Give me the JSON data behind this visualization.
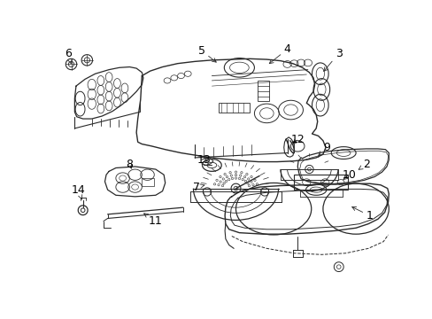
{
  "background_color": "#ffffff",
  "line_color": "#2a2a2a",
  "text_color": "#000000",
  "fig_width": 4.89,
  "fig_height": 3.6,
  "dpi": 100,
  "lw_main": 1.0,
  "lw_thin": 0.6,
  "lw_med": 0.8
}
